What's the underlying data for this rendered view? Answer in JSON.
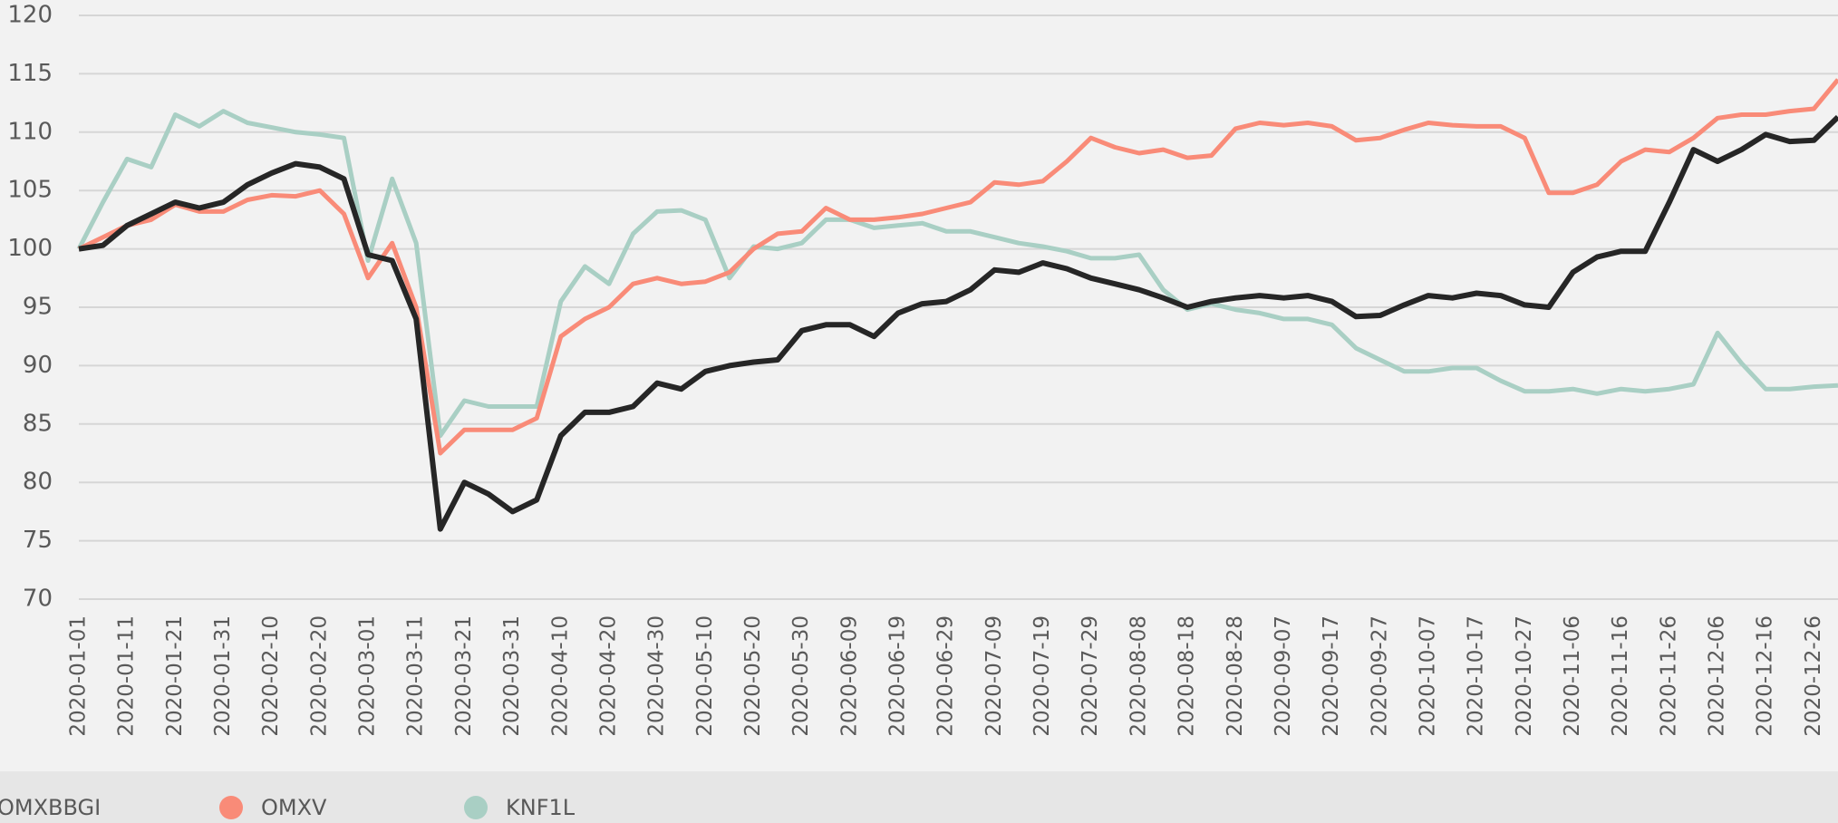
{
  "chart_data": {
    "type": "line",
    "x": [
      "2020-01-01",
      "2020-01-06",
      "2020-01-11",
      "2020-01-16",
      "2020-01-21",
      "2020-01-26",
      "2020-01-31",
      "2020-02-05",
      "2020-02-10",
      "2020-02-15",
      "2020-02-20",
      "2020-02-25",
      "2020-03-01",
      "2020-03-06",
      "2020-03-11",
      "2020-03-16",
      "2020-03-21",
      "2020-03-26",
      "2020-03-31",
      "2020-04-05",
      "2020-04-10",
      "2020-04-15",
      "2020-04-20",
      "2020-04-25",
      "2020-04-30",
      "2020-05-05",
      "2020-05-10",
      "2020-05-15",
      "2020-05-20",
      "2020-05-25",
      "2020-05-30",
      "2020-06-04",
      "2020-06-09",
      "2020-06-14",
      "2020-06-19",
      "2020-06-24",
      "2020-06-29",
      "2020-07-04",
      "2020-07-09",
      "2020-07-14",
      "2020-07-19",
      "2020-07-24",
      "2020-07-29",
      "2020-08-03",
      "2020-08-08",
      "2020-08-13",
      "2020-08-18",
      "2020-08-23",
      "2020-08-28",
      "2020-09-02",
      "2020-09-07",
      "2020-09-12",
      "2020-09-17",
      "2020-09-22",
      "2020-09-27",
      "2020-10-02",
      "2020-10-07",
      "2020-10-12",
      "2020-10-17",
      "2020-10-22",
      "2020-10-27",
      "2020-11-01",
      "2020-11-06",
      "2020-11-11",
      "2020-11-16",
      "2020-11-21",
      "2020-11-26",
      "2020-12-01",
      "2020-12-06",
      "2020-12-11",
      "2020-12-16",
      "2020-12-21",
      "2020-12-26",
      "2020-12-31"
    ],
    "series": [
      {
        "name": "OMXBBGI",
        "color": "#262626",
        "values": [
          100,
          100.3,
          102,
          103,
          104,
          103.5,
          104,
          105.5,
          106.5,
          107.3,
          107,
          106,
          99.5,
          99,
          94,
          76,
          80,
          79,
          77.5,
          78.5,
          84,
          86,
          86,
          86.5,
          88.5,
          88,
          89.5,
          90,
          90.3,
          90.5,
          93,
          93.5,
          93.5,
          92.5,
          94.5,
          95.3,
          95.5,
          96.5,
          98.2,
          98,
          98.8,
          98.3,
          97.5,
          97,
          96.5,
          95.8,
          95,
          95.5,
          95.8,
          96,
          95.8,
          96,
          95.5,
          94.2,
          94.3,
          95.2,
          96,
          95.8,
          96.2,
          96,
          95.2,
          95,
          98,
          99.3,
          99.8,
          99.8,
          104,
          108.5,
          107.5,
          108.5,
          109.8,
          109.2,
          109.3,
          111.3
        ]
      },
      {
        "name": "OMXV",
        "color": "#f98b78",
        "values": [
          100,
          101,
          102,
          102.5,
          103.8,
          103.2,
          103.2,
          104.2,
          104.6,
          104.5,
          105,
          103,
          97.5,
          100.5,
          95,
          82.5,
          84.5,
          84.5,
          84.5,
          85.5,
          92.5,
          94,
          95,
          97,
          97.5,
          97,
          97.2,
          98,
          100,
          101.3,
          101.5,
          103.5,
          102.5,
          102.5,
          102.7,
          103,
          103.5,
          104,
          105.7,
          105.5,
          105.8,
          107.5,
          109.5,
          108.7,
          108.2,
          108.5,
          107.8,
          108,
          110.3,
          110.8,
          110.6,
          110.8,
          110.5,
          109.3,
          109.5,
          110.2,
          110.8,
          110.6,
          110.5,
          110.5,
          109.5,
          104.8,
          104.8,
          105.5,
          107.5,
          108.5,
          108.3,
          109.5,
          111.2,
          111.5,
          111.5,
          111.8,
          112,
          114.5
        ]
      },
      {
        "name": "KNF1L",
        "color": "#a9cfc4",
        "values": [
          100,
          104,
          107.7,
          107,
          111.5,
          110.5,
          111.8,
          110.8,
          110.4,
          110,
          109.8,
          109.5,
          99,
          106,
          100.5,
          84,
          87,
          86.5,
          86.5,
          86.5,
          95.5,
          98.5,
          97,
          101.3,
          103.2,
          103.3,
          102.5,
          97.5,
          100.2,
          100,
          100.5,
          102.5,
          102.5,
          101.8,
          102,
          102.2,
          101.5,
          101.5,
          101,
          100.5,
          100.2,
          99.8,
          99.2,
          99.2,
          99.5,
          96.5,
          94.8,
          95.3,
          94.8,
          94.5,
          94,
          94,
          93.5,
          91.5,
          90.5,
          89.5,
          89.5,
          89.8,
          89.8,
          88.7,
          87.8,
          87.8,
          88,
          87.6,
          88,
          87.8,
          88,
          88.4,
          92.8,
          90.2,
          88,
          88,
          88.2,
          88.3
        ]
      }
    ],
    "xlim": [
      "2020-01-01",
      "2020-12-31"
    ],
    "xticks": [
      "2020-01-01",
      "2020-01-11",
      "2020-01-21",
      "2020-01-31",
      "2020-02-10",
      "2020-02-20",
      "2020-03-01",
      "2020-03-11",
      "2020-03-21",
      "2020-03-31",
      "2020-04-10",
      "2020-04-20",
      "2020-04-30",
      "2020-05-10",
      "2020-05-20",
      "2020-05-30",
      "2020-06-09",
      "2020-06-19",
      "2020-06-29",
      "2020-07-09",
      "2020-07-19",
      "2020-07-29",
      "2020-08-08",
      "2020-08-18",
      "2020-08-28",
      "2020-09-07",
      "2020-09-17",
      "2020-09-27",
      "2020-10-07",
      "2020-10-17",
      "2020-10-27",
      "2020-11-06",
      "2020-11-16",
      "2020-11-26",
      "2020-12-06",
      "2020-12-16",
      "2020-12-26"
    ],
    "ylim": [
      70,
      120
    ],
    "yticks": [
      70,
      75,
      80,
      85,
      90,
      95,
      100,
      105,
      110,
      115,
      120
    ],
    "grid": true,
    "legend": "bottom"
  }
}
